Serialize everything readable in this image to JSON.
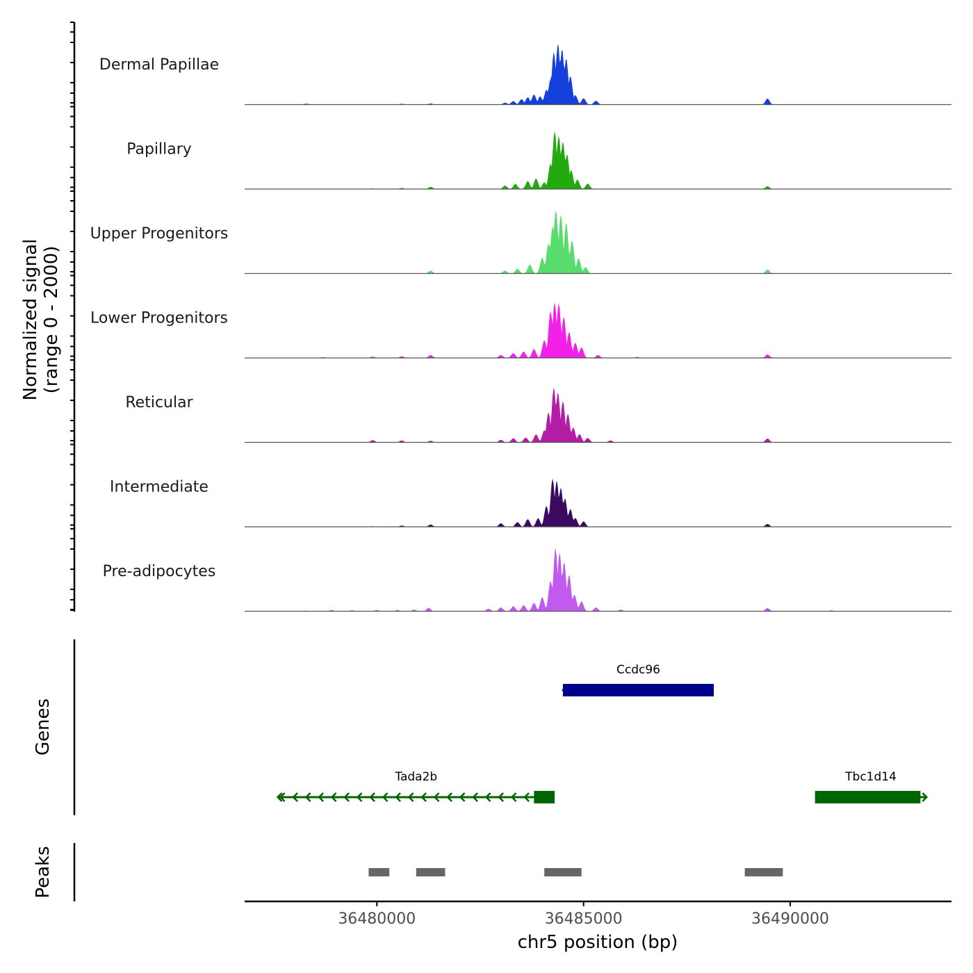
{
  "chart_data": {
    "type": "area",
    "title": "",
    "ylabel_line1": "Normalized signal",
    "ylabel_line2": "(range 0 - 2000)",
    "xlabel": "chr5 position (bp)",
    "xlim": [
      36476800,
      36493900
    ],
    "x_ticks": [
      36480000,
      36485000,
      36490000
    ],
    "x_tick_labels": [
      "36480000",
      "36485000",
      "36490000"
    ],
    "track_ylim": [
      0,
      2000
    ],
    "tracks": [
      {
        "name": "Dermal Papillae",
        "color": "#1540DC",
        "peaks": [
          [
            36478300,
            30
          ],
          [
            36480600,
            25
          ],
          [
            36481300,
            35
          ],
          [
            36483100,
            60
          ],
          [
            36483300,
            110
          ],
          [
            36483500,
            170
          ],
          [
            36483650,
            230
          ],
          [
            36483800,
            320
          ],
          [
            36483950,
            260
          ],
          [
            36484100,
            470
          ],
          [
            36484200,
            800
          ],
          [
            36484280,
            1650
          ],
          [
            36484380,
            1920
          ],
          [
            36484480,
            1750
          ],
          [
            36484580,
            1450
          ],
          [
            36484680,
            900
          ],
          [
            36484800,
            300
          ],
          [
            36485000,
            200
          ],
          [
            36485300,
            120
          ],
          [
            36489450,
            190
          ]
        ]
      },
      {
        "name": "Papillary",
        "color": "#22AA0E",
        "peaks": [
          [
            36479900,
            20
          ],
          [
            36480600,
            35
          ],
          [
            36481300,
            70
          ],
          [
            36483100,
            110
          ],
          [
            36483350,
            160
          ],
          [
            36483650,
            250
          ],
          [
            36483850,
            330
          ],
          [
            36484050,
            210
          ],
          [
            36484200,
            800
          ],
          [
            36484300,
            1830
          ],
          [
            36484400,
            1680
          ],
          [
            36484500,
            1500
          ],
          [
            36484600,
            1100
          ],
          [
            36484700,
            600
          ],
          [
            36484850,
            300
          ],
          [
            36485100,
            170
          ],
          [
            36489450,
            90
          ]
        ]
      },
      {
        "name": "Upper Progenitors",
        "color": "#58DC6E",
        "peaks": [
          [
            36481300,
            90
          ],
          [
            36483100,
            90
          ],
          [
            36483400,
            150
          ],
          [
            36483700,
            280
          ],
          [
            36484000,
            500
          ],
          [
            36484150,
            950
          ],
          [
            36484250,
            1500
          ],
          [
            36484330,
            2000
          ],
          [
            36484450,
            1850
          ],
          [
            36484580,
            1600
          ],
          [
            36484720,
            1050
          ],
          [
            36484880,
            480
          ],
          [
            36485050,
            200
          ],
          [
            36489450,
            120
          ]
        ]
      },
      {
        "name": "Lower Progenitors",
        "color": "#F221E8",
        "peaks": [
          [
            36478700,
            25
          ],
          [
            36479900,
            40
          ],
          [
            36480600,
            50
          ],
          [
            36481300,
            90
          ],
          [
            36483000,
            90
          ],
          [
            36483300,
            150
          ],
          [
            36483550,
            200
          ],
          [
            36483800,
            280
          ],
          [
            36484050,
            560
          ],
          [
            36484200,
            1480
          ],
          [
            36484300,
            1750
          ],
          [
            36484400,
            1720
          ],
          [
            36484520,
            1300
          ],
          [
            36484650,
            820
          ],
          [
            36484800,
            480
          ],
          [
            36484950,
            330
          ],
          [
            36485350,
            90
          ],
          [
            36486300,
            30
          ],
          [
            36489450,
            110
          ]
        ]
      },
      {
        "name": "Reticular",
        "color": "#B51CA6",
        "peaks": [
          [
            36479900,
            70
          ],
          [
            36480600,
            60
          ],
          [
            36481300,
            50
          ],
          [
            36483000,
            80
          ],
          [
            36483300,
            130
          ],
          [
            36483600,
            150
          ],
          [
            36483850,
            250
          ],
          [
            36484050,
            380
          ],
          [
            36484150,
            950
          ],
          [
            36484280,
            1730
          ],
          [
            36484380,
            1580
          ],
          [
            36484500,
            1300
          ],
          [
            36484620,
            900
          ],
          [
            36484750,
            470
          ],
          [
            36484900,
            260
          ],
          [
            36485100,
            140
          ],
          [
            36485650,
            60
          ],
          [
            36489450,
            120
          ]
        ]
      },
      {
        "name": "Intermediate",
        "color": "#3A0A60",
        "peaks": [
          [
            36479900,
            15
          ],
          [
            36480600,
            40
          ],
          [
            36481300,
            70
          ],
          [
            36483000,
            110
          ],
          [
            36483400,
            150
          ],
          [
            36483650,
            240
          ],
          [
            36483900,
            270
          ],
          [
            36484100,
            660
          ],
          [
            36484250,
            1520
          ],
          [
            36484350,
            1450
          ],
          [
            36484450,
            1230
          ],
          [
            36484550,
            900
          ],
          [
            36484680,
            560
          ],
          [
            36484800,
            280
          ],
          [
            36485000,
            170
          ],
          [
            36489450,
            90
          ]
        ]
      },
      {
        "name": "Pre-adipocytes",
        "color": "#C25AF0",
        "peaks": [
          [
            36478300,
            20
          ],
          [
            36478900,
            40
          ],
          [
            36479400,
            30
          ],
          [
            36480000,
            40
          ],
          [
            36480500,
            40
          ],
          [
            36480900,
            50
          ],
          [
            36481250,
            110
          ],
          [
            36482700,
            80
          ],
          [
            36483000,
            120
          ],
          [
            36483300,
            160
          ],
          [
            36483550,
            190
          ],
          [
            36483800,
            260
          ],
          [
            36484000,
            440
          ],
          [
            36484200,
            960
          ],
          [
            36484320,
            2000
          ],
          [
            36484420,
            1850
          ],
          [
            36484530,
            1550
          ],
          [
            36484650,
            1150
          ],
          [
            36484780,
            520
          ],
          [
            36484950,
            310
          ],
          [
            36485300,
            120
          ],
          [
            36485900,
            50
          ],
          [
            36489450,
            100
          ],
          [
            36491000,
            30
          ]
        ]
      }
    ],
    "genes_label": "Genes",
    "genes": [
      {
        "name": "Ccdc96",
        "color": "#00008B",
        "start": 36484500,
        "end": 36488150,
        "thick_start": 36484500,
        "thick_end": 36488150,
        "strand": "-",
        "row": 1
      },
      {
        "name": "Tada2b",
        "color": "#006400",
        "start": 36477600,
        "end": 36484300,
        "thick_start": 36483800,
        "thick_end": 36484300,
        "strand": "-",
        "row": 2
      },
      {
        "name": "Tbc1d14",
        "color": "#006400",
        "start": 36490600,
        "end": 36493300,
        "thick_start": 36490600,
        "thick_end": 36493150,
        "strand": "+",
        "row": 2
      }
    ],
    "peaks_label": "Peaks",
    "peak_color": "#666666",
    "peak_regions": [
      [
        36479800,
        36480300
      ],
      [
        36480950,
        36481650
      ],
      [
        36484050,
        36484950
      ],
      [
        36488900,
        36489820
      ]
    ]
  }
}
